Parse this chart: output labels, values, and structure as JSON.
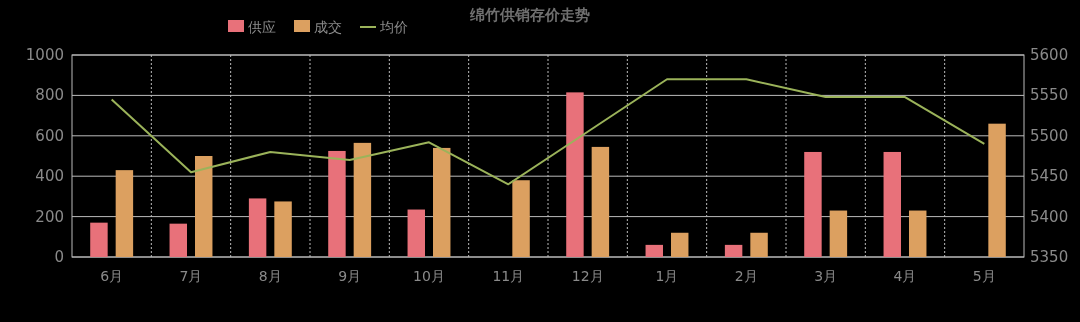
{
  "chart_data": {
    "type": "bar",
    "title": "绵竹供销存价走势",
    "categories": [
      "6月",
      "7月",
      "8月",
      "9月",
      "10月",
      "11月",
      "12月",
      "1月",
      "2月",
      "3月",
      "4月",
      "5月"
    ],
    "series": [
      {
        "name": "供应",
        "color": "#e8717a",
        "values": [
          170,
          165,
          290,
          525,
          235,
          null,
          815,
          60,
          60,
          520,
          520,
          null
        ]
      },
      {
        "name": "成交",
        "color": "#dca060",
        "values": [
          430,
          500,
          275,
          565,
          540,
          380,
          545,
          120,
          120,
          230,
          230,
          660
        ]
      },
      {
        "name": "均价",
        "type": "line",
        "axis": "y2",
        "color": "#9bb35a",
        "values": [
          5545,
          5455,
          5480,
          5470,
          5492,
          5440,
          5505,
          5570,
          5570,
          5548,
          5548,
          5490
        ]
      }
    ],
    "ylim": [
      0,
      1000
    ],
    "yticks": [
      0,
      200,
      400,
      600,
      800,
      1000
    ],
    "y2lim": [
      5350,
      5600
    ],
    "y2ticks": [
      5350,
      5400,
      5450,
      5500,
      5550,
      5600
    ],
    "grid": true,
    "legend": "top"
  }
}
